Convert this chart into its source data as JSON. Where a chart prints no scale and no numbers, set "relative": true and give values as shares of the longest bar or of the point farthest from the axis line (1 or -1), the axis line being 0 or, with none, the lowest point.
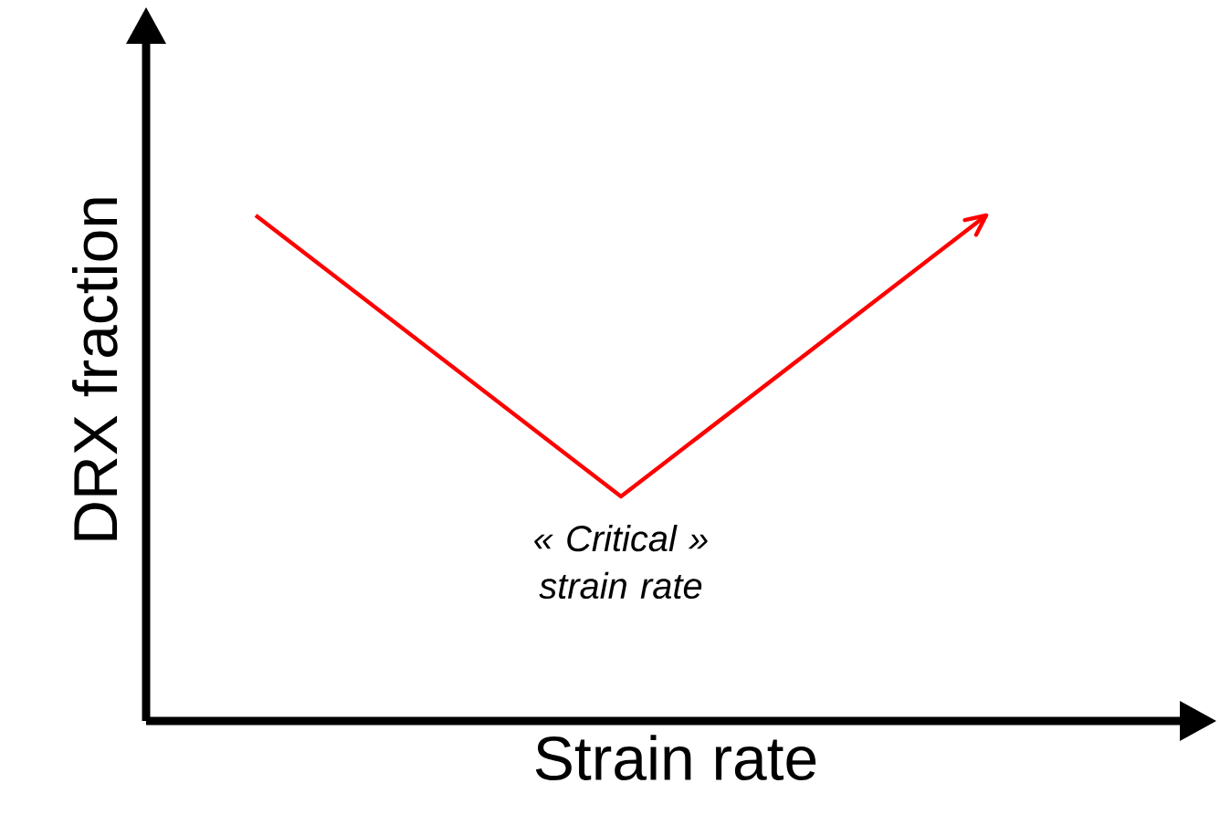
{
  "chart_data": {
    "type": "line",
    "relative": true,
    "xlabel": "Strain rate",
    "ylabel": "DRX fraction",
    "categories": [
      null,
      null,
      null
    ],
    "series": [
      {
        "color": "#ff0000",
        "values": [
          1,
          0.444,
          1
        ]
      }
    ],
    "annotations": [
      "« Critical » strain rate"
    ]
  }
}
